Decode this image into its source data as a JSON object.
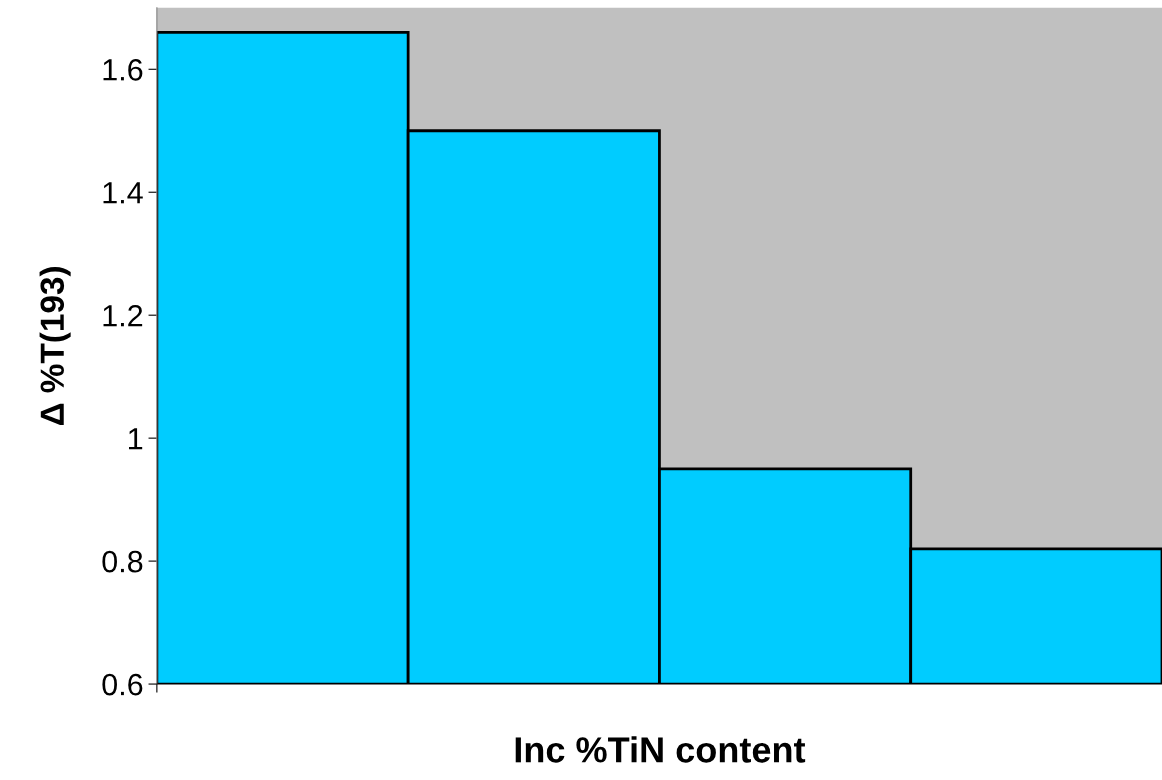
{
  "chart_data": {
    "type": "bar",
    "xlabel": "Inc %TiN content",
    "ylabel": "Δ %T(193)",
    "categories": [
      null,
      null,
      null,
      null
    ],
    "values": [
      1.66,
      1.5,
      0.95,
      0.82
    ],
    "color": "#00ccff",
    "ylim": [
      0.6,
      1.7
    ],
    "yticks": [
      0.6,
      0.8,
      1,
      1.2,
      1.4,
      1.6
    ],
    "grid": false,
    "legend": false
  }
}
